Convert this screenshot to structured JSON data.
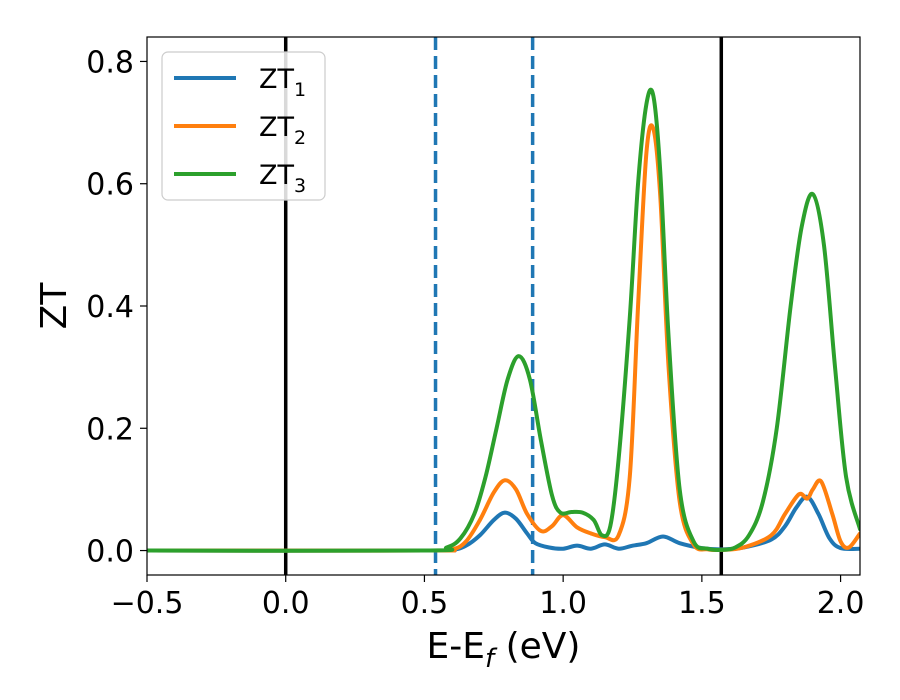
{
  "chart_data": {
    "type": "line",
    "xlabel_main": "E-E",
    "xlabel_sub": "f",
    "xlabel_tail": " (eV)",
    "ylabel": "ZT",
    "xlim": [
      -0.5,
      2.07
    ],
    "ylim": [
      -0.04,
      0.84
    ],
    "xticks": [
      -0.5,
      0.0,
      0.5,
      1.0,
      1.5,
      2.0
    ],
    "xtick_labels": [
      "−0.5",
      "0.0",
      "0.5",
      "1.0",
      "1.5",
      "2.0"
    ],
    "yticks": [
      0.0,
      0.2,
      0.4,
      0.6,
      0.8
    ],
    "ytick_labels": [
      "0.0",
      "0.2",
      "0.4",
      "0.6",
      "0.8"
    ],
    "grid": false,
    "legend_position": "top-left",
    "vlines": [
      {
        "x": 0.0,
        "style": "solid",
        "color": "#000000"
      },
      {
        "x": 0.54,
        "style": "dashed",
        "color": "#1f77b4"
      },
      {
        "x": 0.89,
        "style": "dashed",
        "color": "#1f77b4"
      },
      {
        "x": 1.57,
        "style": "solid",
        "color": "#000000"
      }
    ],
    "series": [
      {
        "name_main": "ZT",
        "name_sub": "1",
        "color": "#1f77b4",
        "x": [
          -0.5,
          0.5,
          0.6,
          0.65,
          0.7,
          0.75,
          0.79,
          0.83,
          0.87,
          0.9,
          0.95,
          1.0,
          1.05,
          1.1,
          1.15,
          1.2,
          1.25,
          1.3,
          1.36,
          1.42,
          1.5,
          1.57,
          1.65,
          1.75,
          1.8,
          1.84,
          1.88,
          1.92,
          1.96,
          2.0,
          2.07
        ],
        "values": [
          0.0,
          0.0,
          0.001,
          0.008,
          0.025,
          0.05,
          0.062,
          0.052,
          0.028,
          0.012,
          0.005,
          0.003,
          0.008,
          0.003,
          0.01,
          0.003,
          0.008,
          0.012,
          0.023,
          0.012,
          0.004,
          0.002,
          0.005,
          0.018,
          0.04,
          0.07,
          0.088,
          0.06,
          0.02,
          0.004,
          0.003
        ]
      },
      {
        "name_main": "ZT",
        "name_sub": "2",
        "color": "#ff7f0e",
        "x": [
          -0.5,
          0.5,
          0.6,
          0.65,
          0.7,
          0.75,
          0.79,
          0.83,
          0.87,
          0.92,
          0.96,
          1.0,
          1.05,
          1.1,
          1.15,
          1.2,
          1.24,
          1.27,
          1.3,
          1.325,
          1.35,
          1.38,
          1.42,
          1.47,
          1.52,
          1.57,
          1.65,
          1.75,
          1.8,
          1.85,
          1.88,
          1.9,
          1.93,
          1.97,
          2.0,
          2.03,
          2.07
        ],
        "values": [
          0.0,
          0.0,
          0.002,
          0.015,
          0.05,
          0.095,
          0.115,
          0.1,
          0.06,
          0.032,
          0.04,
          0.058,
          0.038,
          0.028,
          0.022,
          0.025,
          0.12,
          0.4,
          0.65,
          0.69,
          0.58,
          0.3,
          0.08,
          0.01,
          0.002,
          0.001,
          0.005,
          0.025,
          0.06,
          0.092,
          0.085,
          0.1,
          0.113,
          0.06,
          0.015,
          0.005,
          0.028
        ]
      },
      {
        "name_main": "ZT",
        "name_sub": "3",
        "color": "#2ca02c",
        "x": [
          -0.5,
          0.5,
          0.58,
          0.63,
          0.68,
          0.72,
          0.76,
          0.8,
          0.84,
          0.88,
          0.92,
          0.96,
          0.99,
          1.03,
          1.07,
          1.11,
          1.14,
          1.17,
          1.2,
          1.24,
          1.27,
          1.3,
          1.325,
          1.35,
          1.38,
          1.42,
          1.47,
          1.52,
          1.57,
          1.62,
          1.67,
          1.72,
          1.77,
          1.82,
          1.86,
          1.9,
          1.94,
          1.98,
          2.02,
          2.07
        ],
        "values": [
          0.0,
          0.0,
          0.005,
          0.02,
          0.06,
          0.12,
          0.2,
          0.28,
          0.318,
          0.28,
          0.18,
          0.09,
          0.062,
          0.063,
          0.062,
          0.05,
          0.025,
          0.04,
          0.15,
          0.38,
          0.6,
          0.73,
          0.744,
          0.62,
          0.35,
          0.1,
          0.015,
          0.003,
          0.001,
          0.005,
          0.025,
          0.08,
          0.2,
          0.4,
          0.53,
          0.583,
          0.5,
          0.3,
          0.12,
          0.035
        ]
      }
    ]
  }
}
